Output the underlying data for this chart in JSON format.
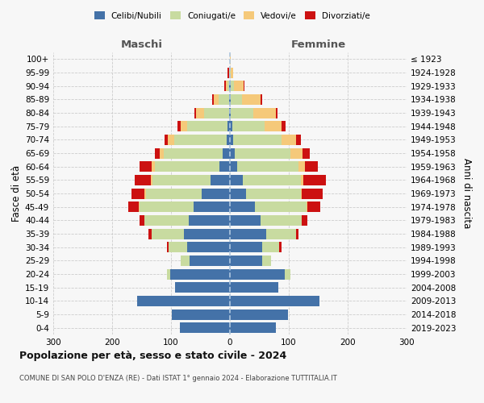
{
  "age_groups": [
    "0-4",
    "5-9",
    "10-14",
    "15-19",
    "20-24",
    "25-29",
    "30-34",
    "35-39",
    "40-44",
    "45-49",
    "50-54",
    "55-59",
    "60-64",
    "65-69",
    "70-74",
    "75-79",
    "80-84",
    "85-89",
    "90-94",
    "95-99",
    "100+"
  ],
  "birth_years": [
    "2019-2023",
    "2014-2018",
    "2009-2013",
    "2004-2008",
    "1999-2003",
    "1994-1998",
    "1989-1993",
    "1984-1988",
    "1979-1983",
    "1974-1978",
    "1969-1973",
    "1964-1968",
    "1959-1963",
    "1954-1958",
    "1949-1953",
    "1944-1948",
    "1939-1943",
    "1934-1938",
    "1929-1933",
    "1924-1928",
    "≤ 1923"
  ],
  "males": {
    "celibi": [
      85,
      98,
      158,
      93,
      102,
      68,
      72,
      78,
      70,
      62,
      48,
      33,
      18,
      12,
      6,
      4,
      2,
      1,
      1,
      0,
      0
    ],
    "coniugati": [
      0,
      0,
      0,
      0,
      5,
      15,
      32,
      55,
      75,
      92,
      95,
      98,
      110,
      100,
      88,
      68,
      42,
      18,
      3,
      1,
      0
    ],
    "vedovi": [
      0,
      0,
      0,
      0,
      0,
      0,
      0,
      0,
      0,
      1,
      2,
      3,
      5,
      7,
      12,
      12,
      14,
      9,
      3,
      1,
      0
    ],
    "divorziati": [
      0,
      0,
      0,
      0,
      0,
      0,
      3,
      5,
      8,
      18,
      22,
      28,
      20,
      8,
      5,
      5,
      2,
      2,
      2,
      2,
      0
    ]
  },
  "females": {
    "nubili": [
      78,
      98,
      152,
      82,
      93,
      55,
      55,
      62,
      52,
      42,
      28,
      22,
      12,
      8,
      6,
      4,
      2,
      2,
      1,
      0,
      0
    ],
    "coniugate": [
      0,
      0,
      0,
      0,
      10,
      15,
      28,
      50,
      70,
      88,
      92,
      98,
      105,
      95,
      82,
      55,
      38,
      18,
      6,
      1,
      0
    ],
    "vedove": [
      0,
      0,
      0,
      0,
      0,
      0,
      0,
      0,
      0,
      1,
      2,
      5,
      10,
      20,
      25,
      28,
      38,
      32,
      16,
      4,
      1
    ],
    "divorziate": [
      0,
      0,
      0,
      0,
      0,
      0,
      5,
      5,
      10,
      22,
      35,
      38,
      22,
      12,
      8,
      8,
      3,
      3,
      2,
      1,
      0
    ]
  },
  "colors": {
    "celibi_nubili": "#4472a8",
    "coniugati": "#c8dba0",
    "vedovi": "#f5c97a",
    "divorziati": "#cc1111"
  },
  "xlim": 300,
  "title": "Popolazione per età, sesso e stato civile - 2024",
  "subtitle": "COMUNE DI SAN POLO D'ENZA (RE) - Dati ISTAT 1° gennaio 2024 - Elaborazione TUTTITALIA.IT",
  "xlabel_left": "Maschi",
  "xlabel_right": "Femmine",
  "ylabel_left": "Fasce di età",
  "ylabel_right": "Anni di nascita",
  "legend_labels": [
    "Celibi/Nubili",
    "Coniugati/e",
    "Vedovi/e",
    "Divorziati/e"
  ],
  "background_color": "#f7f7f7"
}
